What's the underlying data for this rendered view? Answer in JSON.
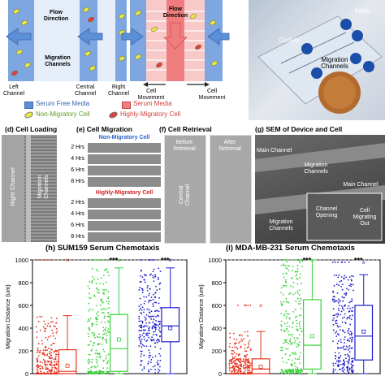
{
  "top": {
    "flow_direction_left": "Flow\nDirection",
    "flow_direction_mid": "Flow\nDirection",
    "migration_channels_left": "Migration\nChannels",
    "left_channel": "Left\nChannel",
    "central_channel": "Central\nChannel",
    "right_channel": "Right\nChannel",
    "cell_movement_1": "Cell\nMovement",
    "cell_movement_2": "Cell\nMovement",
    "inlets": "Inlets",
    "outlets": "Outlets",
    "migration_channels_photo": "Migration\nChannels"
  },
  "legend": {
    "serum_free": "Serum Free Media",
    "serum": "Serum Media",
    "non_migratory": "Non-Migratory Cell",
    "highly_migratory": "Highly-Migratory Cell",
    "colors": {
      "serum_free": "#5b8fd6",
      "serum": "#ef7d7d",
      "non_migratory": "#e8e84a",
      "highly_migratory": "#e04040"
    }
  },
  "panels": {
    "d_title": "(d) Cell Loading",
    "d_right_channel": "Right Channel",
    "d_migration_channels": "Migration\nChannels",
    "e_title": "(e) Cell Migration",
    "e_non_migratory": "Non-Migratory Cell",
    "e_highly_migratory": "Highly-Migratory Cell",
    "e_times_top": [
      "2 Hrs",
      "4 Hrs",
      "6 Hrs",
      "8 Hrs"
    ],
    "e_times_bottom": [
      "2 Hrs",
      "4 Hrs",
      "6 Hrs",
      "8 Hrs"
    ],
    "f_title": "(f) Cell Retrieval",
    "f_before": "Before\nRetrieval",
    "f_after": "After\nRetrieval",
    "f_central": "Central\nChannel",
    "g_title": "(g) SEM of Device and Cell",
    "g_main_channel_1": "Main Channel",
    "g_main_channel_2": "Main Channel",
    "g_migration_channels_1": "Migration\nChannels",
    "g_migration_channels_2": "Migration\nChannels",
    "g_channel_opening": "Channel\nOpening",
    "g_cell_migrating": "Cell\nMigrating\nOut"
  },
  "chart_data": [
    {
      "type": "box",
      "title": "(h) SUM159 Serum Chemotaxis",
      "ylabel": "Migration Distance (um)",
      "ylim": [
        0,
        1000
      ],
      "yticks": [
        0,
        200,
        400,
        600,
        800,
        1000
      ],
      "significance": [
        "",
        "***",
        "***"
      ],
      "series": [
        {
          "color": "#e8301c",
          "q1": 0,
          "median": 20,
          "q3": 210,
          "whisker_low": 0,
          "whisker_high": 510,
          "mean": 70,
          "max": 1000
        },
        {
          "color": "#3ad13a",
          "q1": 20,
          "median": 220,
          "q3": 520,
          "whisker_low": 0,
          "whisker_high": 930,
          "mean": 300,
          "max": 1000
        },
        {
          "color": "#1c1ccc",
          "q1": 280,
          "median": 420,
          "q3": 580,
          "whisker_low": 0,
          "whisker_high": 930,
          "mean": 400,
          "max": 1000
        }
      ]
    },
    {
      "type": "box",
      "title": "(i) MDA-MB-231 Serum Chemotaxis",
      "ylabel": "Migration Distance (um)",
      "ylim": [
        0,
        1000
      ],
      "yticks": [
        0,
        200,
        400,
        600,
        800,
        1000
      ],
      "significance": [
        "",
        "***",
        "***"
      ],
      "series": [
        {
          "color": "#e8301c",
          "q1": 0,
          "median": 40,
          "q3": 130,
          "whisker_low": 0,
          "whisker_high": 370,
          "mean": 60,
          "max": 600
        },
        {
          "color": "#3ad13a",
          "q1": 40,
          "median": 250,
          "q3": 650,
          "whisker_low": 0,
          "whisker_high": 1000,
          "mean": 330,
          "max": 1000
        },
        {
          "color": "#1c1ccc",
          "q1": 120,
          "median": 330,
          "q3": 600,
          "whisker_low": 0,
          "whisker_high": 870,
          "mean": 370,
          "max": 980
        }
      ]
    }
  ]
}
